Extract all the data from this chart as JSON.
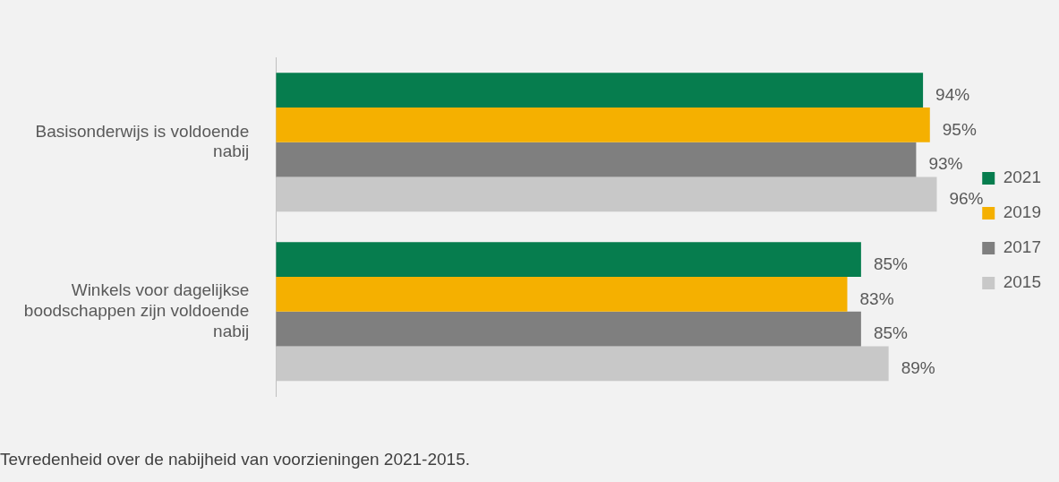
{
  "chart_data": {
    "type": "bar",
    "orientation": "horizontal",
    "categories": [
      "Basisonderwijs is voldoende nabij",
      "Winkels voor dagelijkse boodschappen zijn voldoende nabij"
    ],
    "series": [
      {
        "name": "2021",
        "color": "#067d4e",
        "values": [
          94,
          85
        ],
        "value_labels": [
          "94%",
          "85%"
        ]
      },
      {
        "name": "2019",
        "color": "#f5b000",
        "values": [
          95,
          83
        ],
        "value_labels": [
          "95%",
          "83%"
        ]
      },
      {
        "name": "2017",
        "color": "#7f7f7f",
        "values": [
          93,
          85
        ],
        "value_labels": [
          "93%",
          "85%"
        ]
      },
      {
        "name": "2015",
        "color": "#c8c8c8",
        "values": [
          96,
          89
        ],
        "value_labels": [
          "96%",
          "89%"
        ]
      }
    ],
    "legend": "right",
    "annotations": [
      "Tevredenheid over de nabijheid van voorzieningen 2021-2015."
    ]
  }
}
